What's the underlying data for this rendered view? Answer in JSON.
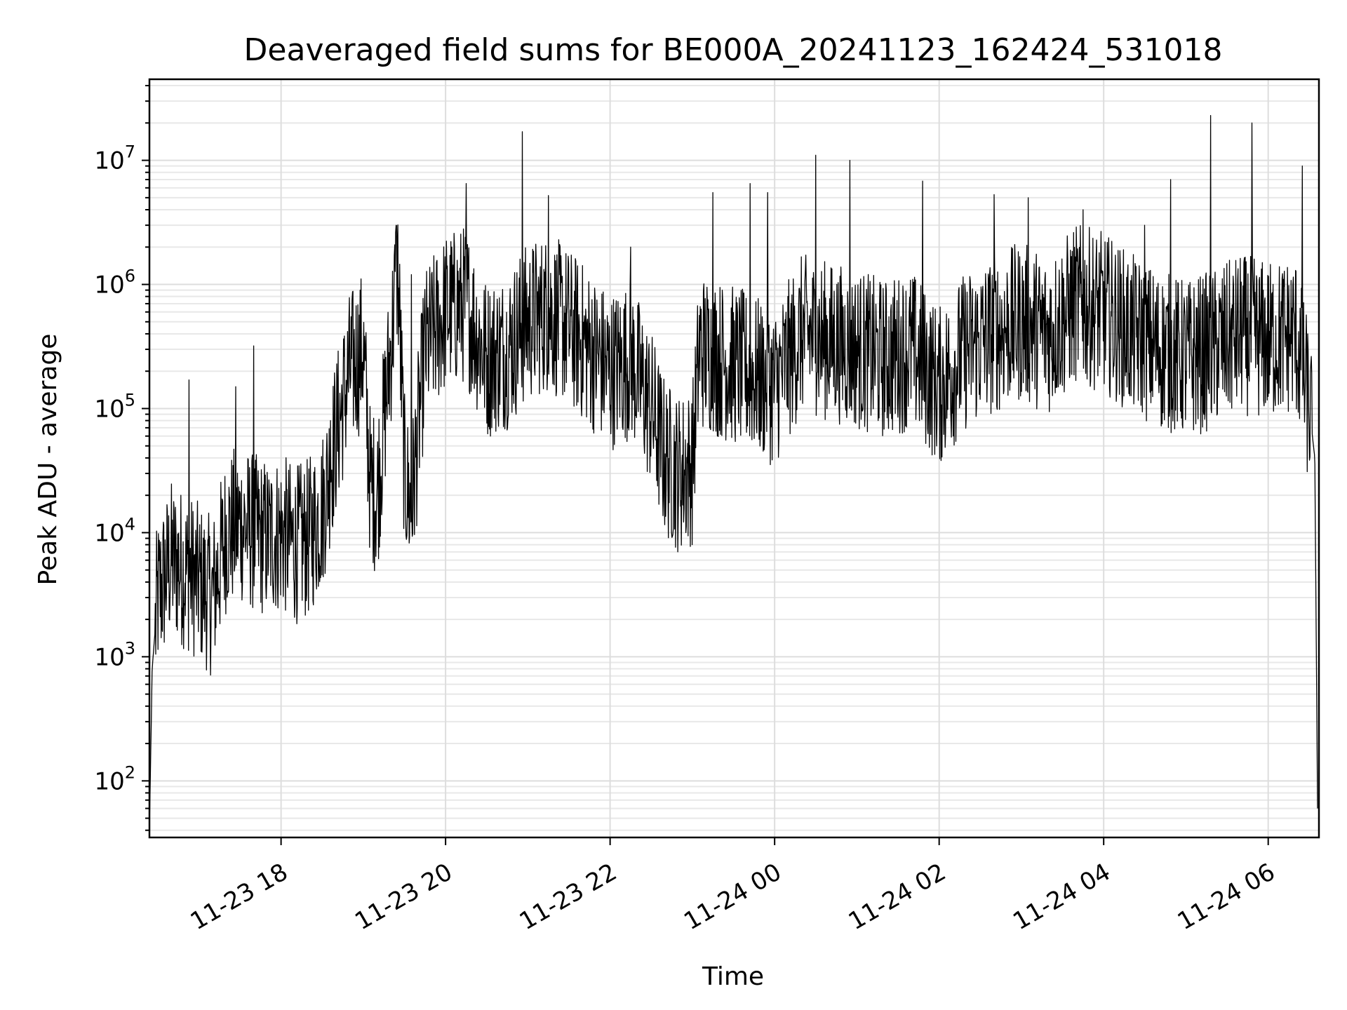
{
  "chart_data": {
    "type": "line",
    "title": "Deaveraged field sums for BE000A_20241123_162424_531018",
    "xlabel": "Time",
    "ylabel": "Peak ADU - average",
    "yscale": "log",
    "ylim": [
      35,
      45000000
    ],
    "xlim": [
      "2024-11-23 16:24",
      "2024-11-24 06:37"
    ],
    "grid": true,
    "x_ticks": [
      {
        "value": "2024-11-23 18:00",
        "label": "11-23 18"
      },
      {
        "value": "2024-11-23 20:00",
        "label": "11-23 20"
      },
      {
        "value": "2024-11-23 22:00",
        "label": "11-23 22"
      },
      {
        "value": "2024-11-24 00:00",
        "label": "11-24 00"
      },
      {
        "value": "2024-11-24 02:00",
        "label": "11-24 02"
      },
      {
        "value": "2024-11-24 04:00",
        "label": "11-24 04"
      },
      {
        "value": "2024-11-24 06:00",
        "label": "11-24 06"
      }
    ],
    "y_ticks": [
      {
        "value": 100,
        "base": "10",
        "exp": "2"
      },
      {
        "value": 1000,
        "base": "10",
        "exp": "3"
      },
      {
        "value": 10000,
        "base": "10",
        "exp": "4"
      },
      {
        "value": 100000,
        "base": "10",
        "exp": "5"
      },
      {
        "value": 1000000,
        "base": "10",
        "exp": "6"
      },
      {
        "value": 10000000,
        "base": "10",
        "exp": "7"
      }
    ],
    "series": [
      {
        "color": "#000000",
        "points": [
          [
            "2024-11-23 16:24",
            40
          ],
          [
            "2024-11-23 16:26",
            800
          ],
          [
            "2024-11-23 16:30",
            3000
          ],
          [
            "2024-11-23 16:40",
            6000
          ],
          [
            "2024-11-23 16:50",
            5000
          ],
          [
            "2024-11-23 17:00",
            4000
          ],
          [
            "2024-11-23 17:10",
            3000
          ],
          [
            "2024-11-23 17:20",
            10000
          ],
          [
            "2024-11-23 17:30",
            12000
          ],
          [
            "2024-11-23 17:40",
            10000
          ],
          [
            "2024-11-23 17:50",
            9000
          ],
          [
            "2024-11-23 18:00",
            10000
          ],
          [
            "2024-11-23 18:10",
            8000
          ],
          [
            "2024-11-23 18:20",
            9000
          ],
          [
            "2024-11-23 18:30",
            15000
          ],
          [
            "2024-11-23 18:40",
            60000
          ],
          [
            "2024-11-23 18:50",
            200000
          ],
          [
            "2024-11-23 19:00",
            300000
          ],
          [
            "2024-11-23 19:05",
            25000
          ],
          [
            "2024-11-23 19:10",
            20000
          ],
          [
            "2024-11-23 19:20",
            300000
          ],
          [
            "2024-11-23 19:25",
            1500000
          ],
          [
            "2024-11-23 19:30",
            30000
          ],
          [
            "2024-11-23 19:35",
            15000
          ],
          [
            "2024-11-23 19:45",
            300000
          ],
          [
            "2024-11-23 20:00",
            600000
          ],
          [
            "2024-11-23 20:15",
            700000
          ],
          [
            "2024-11-23 20:30",
            250000
          ],
          [
            "2024-11-23 20:45",
            300000
          ],
          [
            "2024-11-23 21:00",
            500000
          ],
          [
            "2024-11-23 21:15",
            600000
          ],
          [
            "2024-11-23 21:30",
            450000
          ],
          [
            "2024-11-23 21:45",
            300000
          ],
          [
            "2024-11-23 22:00",
            200000
          ],
          [
            "2024-11-23 22:15",
            250000
          ],
          [
            "2024-11-23 22:30",
            100000
          ],
          [
            "2024-11-23 22:40",
            40000
          ],
          [
            "2024-11-23 22:50",
            30000
          ],
          [
            "2024-11-23 23:00",
            35000
          ],
          [
            "2024-11-23 23:05",
            300000
          ],
          [
            "2024-11-23 23:20",
            250000
          ],
          [
            "2024-11-23 23:40",
            200000
          ],
          [
            "2024-11-24 00:00",
            150000
          ],
          [
            "2024-11-24 00:20",
            400000
          ],
          [
            "2024-11-24 00:40",
            350000
          ],
          [
            "2024-11-24 01:00",
            300000
          ],
          [
            "2024-11-24 01:20",
            250000
          ],
          [
            "2024-11-24 01:40",
            300000
          ],
          [
            "2024-11-24 02:00",
            150000
          ],
          [
            "2024-11-24 02:20",
            300000
          ],
          [
            "2024-11-24 02:40",
            400000
          ],
          [
            "2024-11-24 03:00",
            500000
          ],
          [
            "2024-11-24 03:20",
            400000
          ],
          [
            "2024-11-24 03:40",
            700000
          ],
          [
            "2024-11-24 04:00",
            600000
          ],
          [
            "2024-11-24 04:20",
            400000
          ],
          [
            "2024-11-24 04:40",
            300000
          ],
          [
            "2024-11-24 05:00",
            250000
          ],
          [
            "2024-11-24 05:20",
            300000
          ],
          [
            "2024-11-24 05:40",
            400000
          ],
          [
            "2024-11-24 06:00",
            350000
          ],
          [
            "2024-11-24 06:20",
            400000
          ],
          [
            "2024-11-24 06:30",
            100000
          ],
          [
            "2024-11-24 06:34",
            40000
          ],
          [
            "2024-11-24 06:36",
            60
          ]
        ],
        "spikes": [
          [
            "2024-11-23 16:53",
            170000
          ],
          [
            "2024-11-23 17:27",
            150000
          ],
          [
            "2024-11-23 17:40",
            320000
          ],
          [
            "2024-11-23 18:36",
            80000
          ],
          [
            "2024-11-23 19:24",
            3000000
          ],
          [
            "2024-11-23 19:35",
            1200000
          ],
          [
            "2024-11-23 20:15",
            6500000
          ],
          [
            "2024-11-23 20:56",
            17000000
          ],
          [
            "2024-11-23 21:15",
            5200000
          ],
          [
            "2024-11-23 22:15",
            2000000
          ],
          [
            "2024-11-23 23:15",
            5500000
          ],
          [
            "2024-11-23 23:42",
            6500000
          ],
          [
            "2024-11-23 23:55",
            5500000
          ],
          [
            "2024-11-24 00:30",
            11000000
          ],
          [
            "2024-11-24 00:55",
            10000000
          ],
          [
            "2024-11-24 01:48",
            6800000
          ],
          [
            "2024-11-24 02:40",
            5300000
          ],
          [
            "2024-11-24 03:05",
            5000000
          ],
          [
            "2024-11-24 03:45",
            4000000
          ],
          [
            "2024-11-24 04:30",
            3000000
          ],
          [
            "2024-11-24 04:49",
            7000000
          ],
          [
            "2024-11-24 05:18",
            23000000
          ],
          [
            "2024-11-24 05:48",
            20000000
          ],
          [
            "2024-11-24 06:25",
            9000000
          ]
        ]
      }
    ]
  }
}
